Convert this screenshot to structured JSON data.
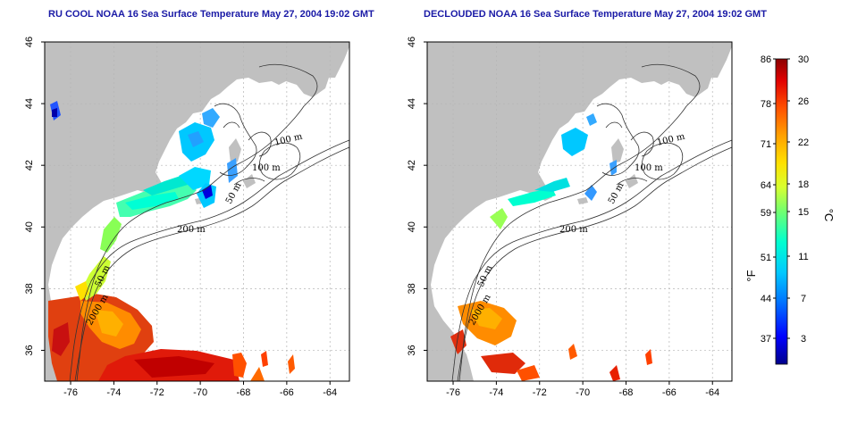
{
  "panels": [
    {
      "title": "RU COOL NOAA 16 Sea Surface Temperature May 27, 2004 19:02 GMT",
      "contour_labels": [
        "100 m",
        "100 m",
        "50 m",
        "200 m",
        "50 m",
        "2000 m"
      ]
    },
    {
      "title": "DECLOUDED NOAA 16 Sea Surface Temperature May 27, 2004 19:02 GMT",
      "contour_labels": [
        "100 m",
        "100 m",
        "50 m",
        "200 m",
        "50 m",
        "2000 m"
      ]
    }
  ],
  "axes": {
    "x_ticks": [
      "-76",
      "-74",
      "-72",
      "-70",
      "-68",
      "-66",
      "-64"
    ],
    "y_ticks": [
      "36",
      "38",
      "40",
      "42",
      "44",
      "46"
    ],
    "xlim": [
      -77.2,
      -63.1
    ],
    "ylim": [
      35,
      46
    ],
    "grid": true
  },
  "colorbar": {
    "fahrenheit_label": "°F",
    "celsius_label": "°C",
    "fahrenheit_ticks": [
      "86",
      "78",
      "71",
      "64",
      "59",
      "51",
      "44",
      "37"
    ],
    "celsius_ticks": [
      "30",
      "26",
      "22",
      "18",
      "15",
      "11",
      "7",
      "3"
    ],
    "colors": [
      "#00008b",
      "#0000ff",
      "#0066ff",
      "#00bbff",
      "#00ffd5",
      "#66ff66",
      "#ccff33",
      "#ffe000",
      "#ffa000",
      "#ff5500",
      "#e00000",
      "#8b0000"
    ]
  },
  "colors": {
    "land": "#c0c0c0",
    "title": "#1a1aa6"
  }
}
